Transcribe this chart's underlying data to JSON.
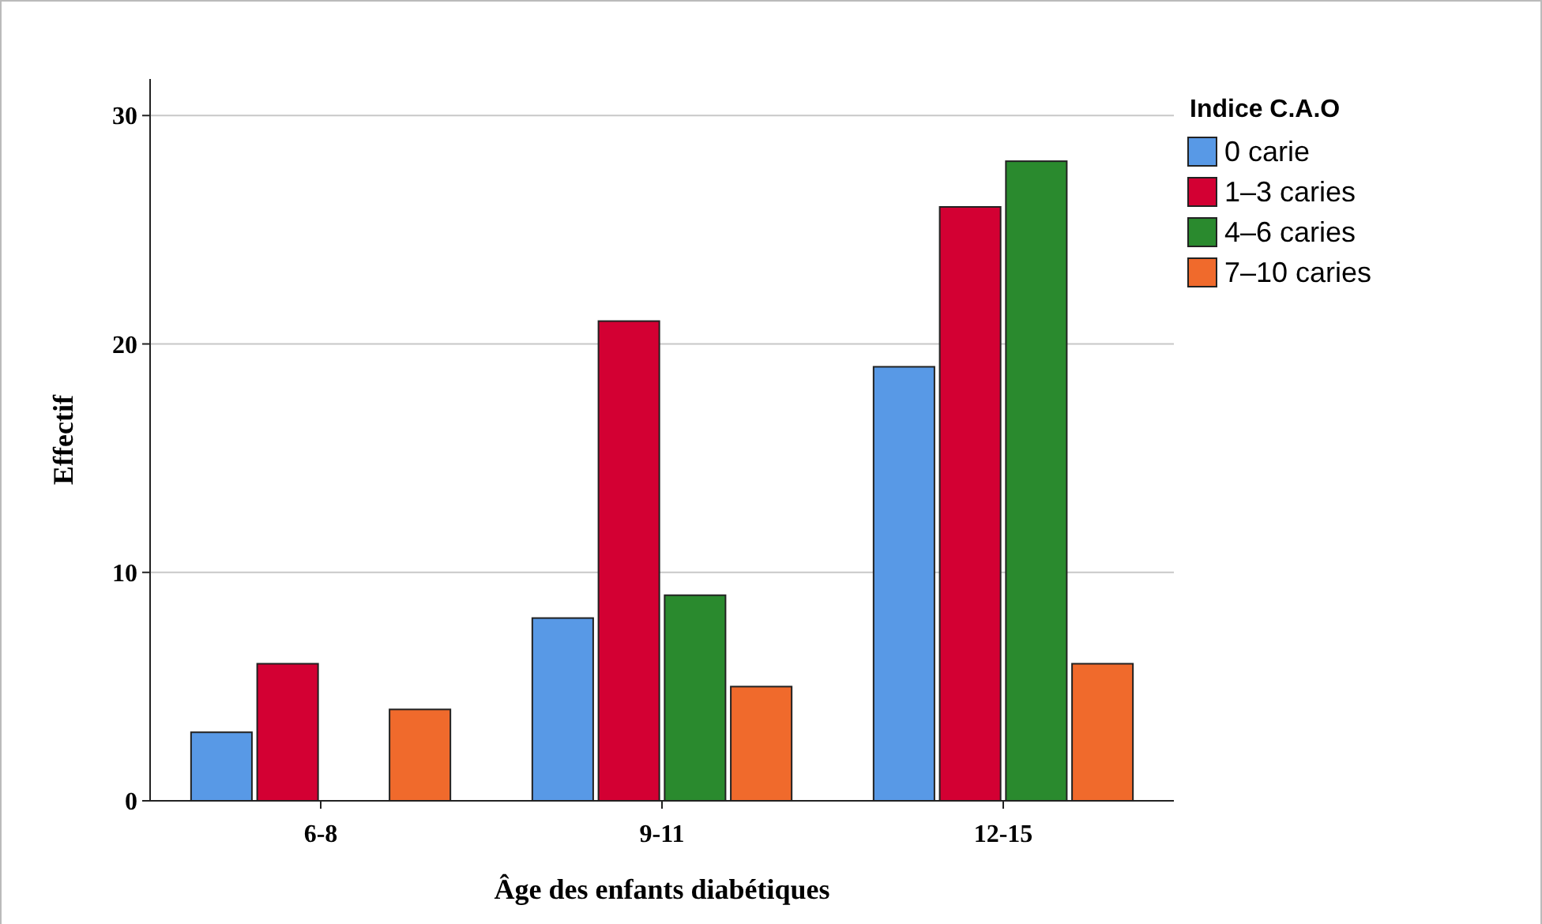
{
  "chart_data": {
    "type": "bar",
    "xlabel": "Âge des enfants diabétiques",
    "ylabel": "Effectif",
    "legend_title": "Indice C.A.O",
    "categories": [
      "6-8",
      "9-11",
      "12-15"
    ],
    "series": [
      {
        "name": "0 carie",
        "color": "#5899e6",
        "values": [
          3,
          8,
          19
        ]
      },
      {
        "name": "1–3 caries",
        "color": "#d30033",
        "values": [
          6,
          21,
          26
        ]
      },
      {
        "name": "4–6 caries",
        "color": "#2a8a2e",
        "values": [
          null,
          9,
          28
        ]
      },
      {
        "name": "7–10 caries",
        "color": "#f06a2c",
        "values": [
          4,
          5,
          6
        ]
      }
    ],
    "ylim": [
      0,
      31.6
    ],
    "yticks": [
      0,
      10,
      20,
      30
    ],
    "grid": "y",
    "legend": "top right"
  }
}
